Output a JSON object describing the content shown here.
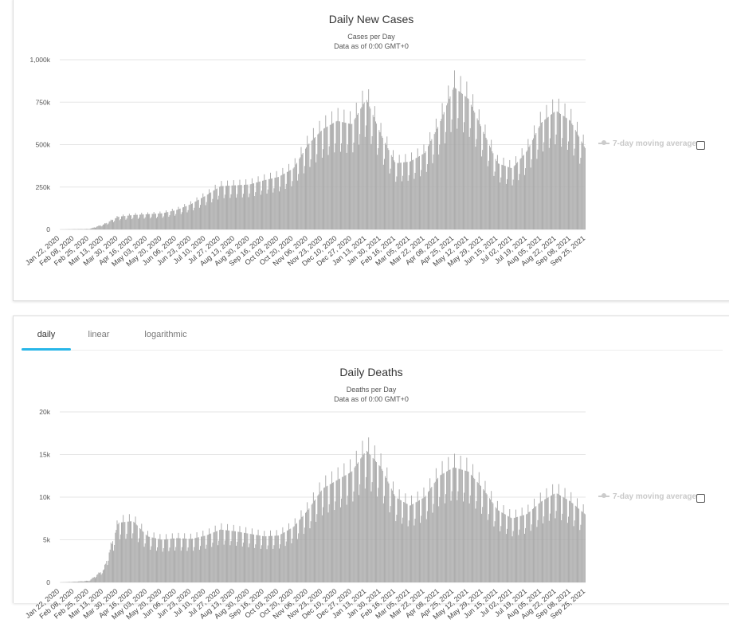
{
  "tabs": [
    "daily",
    "linear",
    "logarithmic"
  ],
  "legend_label": "7-day moving average",
  "bar_color": "#a9a9a9",
  "chart_data": [
    {
      "type": "bar",
      "title": "Daily New Cases",
      "subtitle": "Cases per Day",
      "note": "Data as of 0:00 GMT+0",
      "yticks": [
        "0",
        "250k",
        "500k",
        "750k",
        "1,000k"
      ],
      "ylim": [
        0,
        1000000
      ],
      "categories": [
        "Jan 22, 2020",
        "Feb 08, 2020",
        "Feb 25, 2020",
        "Mar 13, 2020",
        "Mar 30, 2020",
        "Apr 16, 2020",
        "May 03, 2020",
        "May 20, 2020",
        "Jun 06, 2020",
        "Jun 23, 2020",
        "Jul 10, 2020",
        "Jul 27, 2020",
        "Aug 13, 2020",
        "Aug 30, 2020",
        "Sep 16, 2020",
        "Oct 03, 2020",
        "Oct 20, 2020",
        "Nov 06, 2020",
        "Nov 23, 2020",
        "Dec 10, 2020",
        "Dec 27, 2020",
        "Jan 13, 2021",
        "Jan 30, 2021",
        "Feb 16, 2021",
        "Mar 05, 2021",
        "Mar 22, 2021",
        "Apr 08, 2021",
        "Apr 25, 2021",
        "May 12, 2021",
        "May 29, 2021",
        "Jun 15, 2021",
        "Jul 02, 2021",
        "Jul 19, 2021",
        "Aug 05, 2021",
        "Aug 22, 2021",
        "Sep 08, 2021",
        "Sep 25, 2021"
      ],
      "values": [
        0,
        2000,
        3000,
        30000,
        75000,
        85000,
        90000,
        95000,
        115000,
        150000,
        200000,
        255000,
        260000,
        265000,
        290000,
        310000,
        360000,
        500000,
        590000,
        640000,
        620000,
        770000,
        560000,
        390000,
        400000,
        450000,
        620000,
        840000,
        770000,
        580000,
        390000,
        360000,
        460000,
        630000,
        700000,
        640000,
        480000
      ]
    },
    {
      "type": "bar",
      "title": "Daily Deaths",
      "subtitle": "Deaths per Day",
      "note": "Data as of 0:00 GMT+0",
      "yticks": [
        "0",
        "5k",
        "10k",
        "15k",
        "20k"
      ],
      "ylim": [
        0,
        20000
      ],
      "categories": [
        "Jan 22, 2020",
        "Feb 08, 2020",
        "Feb 25, 2020",
        "Mar 13, 2020",
        "Mar 30, 2020",
        "Apr 16, 2020",
        "May 03, 2020",
        "May 20, 2020",
        "Jun 06, 2020",
        "Jun 23, 2020",
        "Jul 10, 2020",
        "Jul 27, 2020",
        "Aug 13, 2020",
        "Aug 30, 2020",
        "Sep 16, 2020",
        "Oct 03, 2020",
        "Oct 20, 2020",
        "Nov 06, 2020",
        "Nov 23, 2020",
        "Dec 10, 2020",
        "Dec 27, 2020",
        "Jan 13, 2021",
        "Jan 30, 2021",
        "Feb 16, 2021",
        "Mar 05, 2021",
        "Mar 22, 2021",
        "Apr 08, 2021",
        "Apr 25, 2021",
        "May 12, 2021",
        "May 29, 2021",
        "Jun 15, 2021",
        "Jul 02, 2021",
        "Jul 19, 2021",
        "Aug 05, 2021",
        "Aug 22, 2021",
        "Sep 08, 2021",
        "Sep 25, 2021"
      ],
      "values": [
        0,
        80,
        200,
        1500,
        7000,
        7200,
        5400,
        5000,
        5200,
        5100,
        5500,
        6200,
        6000,
        5700,
        5400,
        5500,
        6500,
        8500,
        11000,
        12000,
        13000,
        15500,
        13500,
        10000,
        9000,
        10000,
        12500,
        13500,
        13000,
        11000,
        8500,
        7500,
        8000,
        9500,
        10500,
        9500,
        8000
      ]
    }
  ]
}
